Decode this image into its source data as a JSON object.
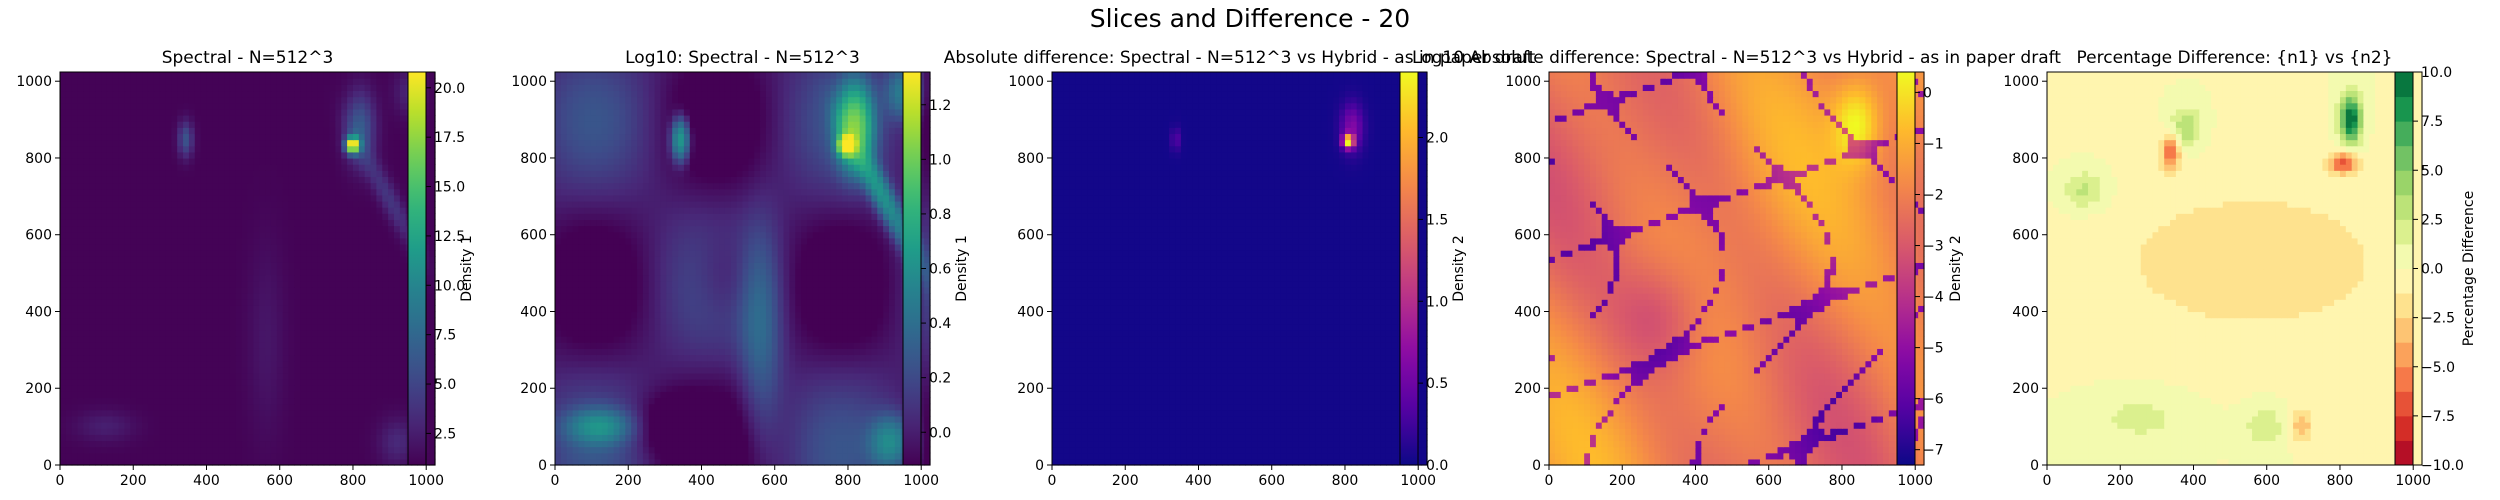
{
  "figure": {
    "title": "Slices and Difference - 20"
  },
  "chart_data": [
    {
      "type": "heatmap",
      "title": "Spectral - N=512^3",
      "xlabel": "",
      "ylabel": "",
      "xlim": [
        0,
        1024
      ],
      "ylim": [
        0,
        1024
      ],
      "x_ticks": [
        "0",
        "200",
        "400",
        "600",
        "800",
        "1000"
      ],
      "y_ticks": [
        "0",
        "200",
        "400",
        "600",
        "800",
        "1000"
      ],
      "colormap": "viridis",
      "colorbar": {
        "label": "Density 1",
        "range": [
          0.9,
          20.8
        ],
        "ticks": [
          "2.5",
          "5.0",
          "7.5",
          "10.0",
          "12.5",
          "15.0",
          "17.5",
          "20.0"
        ]
      },
      "field": "density_linear",
      "features": [
        {
          "x": 800,
          "y": 835,
          "value": 20.5,
          "note": "peak"
        },
        {
          "x": 340,
          "y": 850,
          "value": 6.5
        }
      ]
    },
    {
      "type": "heatmap",
      "title": "Log10: Spectral - N=512^3",
      "xlabel": "",
      "ylabel": "",
      "xlim": [
        0,
        1024
      ],
      "ylim": [
        0,
        1024
      ],
      "x_ticks": [
        "0",
        "200",
        "400",
        "600",
        "800",
        "1000"
      ],
      "y_ticks": [
        "0",
        "200",
        "400",
        "600",
        "800",
        "1000"
      ],
      "colormap": "viridis",
      "colorbar": {
        "label": "Density 1",
        "range": [
          -0.12,
          1.32
        ],
        "ticks": [
          "0.0",
          "0.2",
          "0.4",
          "0.6",
          "0.8",
          "1.0",
          "1.2"
        ]
      },
      "field": "density_log10",
      "features": [
        {
          "x": 800,
          "y": 835,
          "value": 1.31,
          "note": "peak"
        },
        {
          "x": 340,
          "y": 850,
          "value": 0.8
        }
      ]
    },
    {
      "type": "heatmap",
      "title": "Absolute difference: Spectral - N=512^3 vs Hybrid - as in paper draft",
      "xlabel": "",
      "ylabel": "",
      "xlim": [
        0,
        1024
      ],
      "ylim": [
        0,
        1024
      ],
      "x_ticks": [
        "0",
        "200",
        "400",
        "600",
        "800",
        "1000"
      ],
      "y_ticks": [
        "0",
        "200",
        "400",
        "600",
        "800",
        "1000"
      ],
      "colormap": "plasma",
      "colorbar": {
        "label": "Density 2",
        "range": [
          0,
          2.4
        ],
        "ticks": [
          "0.0",
          "0.5",
          "1.0",
          "1.5",
          "2.0"
        ]
      },
      "field": "abs_difference",
      "features": [
        {
          "x": 810,
          "y": 845,
          "value": 2.3,
          "note": "peak"
        }
      ]
    },
    {
      "type": "heatmap",
      "title": "Log10 Absolute difference: Spectral - N=512^3 vs Hybrid - as in paper draft",
      "xlabel": "",
      "ylabel": "",
      "xlim": [
        0,
        1024
      ],
      "ylim": [
        0,
        1024
      ],
      "x_ticks": [
        "0",
        "200",
        "400",
        "600",
        "800",
        "1000"
      ],
      "y_ticks": [
        "0",
        "200",
        "400",
        "600",
        "800",
        "1000"
      ],
      "colormap": "plasma",
      "colorbar": {
        "label": "Density 2",
        "range": [
          -7.3,
          0.4
        ],
        "ticks": [
          "−7",
          "−6",
          "−5",
          "−4",
          "−3",
          "−2",
          "−1",
          "0"
        ]
      },
      "field": "log_abs_difference",
      "features": [
        {
          "x": 830,
          "y": 900,
          "value": 0.2,
          "note": "maximum"
        },
        {
          "x": 250,
          "y": 380,
          "value": -5.0,
          "note": "zero-crossing curves"
        }
      ]
    },
    {
      "type": "heatmap",
      "title": "Percentage Difference: {n1} vs {n2}",
      "xlabel": "",
      "ylabel": "",
      "xlim": [
        0,
        1024
      ],
      "ylim": [
        0,
        1024
      ],
      "x_ticks": [
        "0",
        "200",
        "400",
        "600",
        "800",
        "1000"
      ],
      "y_ticks": [
        "0",
        "200",
        "400",
        "600",
        "800",
        "1000"
      ],
      "colormap": "RdYlGn",
      "colorbar": {
        "label": "Percentage Difference",
        "range": [
          -10,
          10
        ],
        "ticks": [
          "−10.0",
          "−7.5",
          "−5.0",
          "−2.5",
          "0.0",
          "2.5",
          "5.0",
          "7.5",
          "10.0"
        ]
      },
      "field": "percentage_difference",
      "features": [
        {
          "x": 830,
          "y": 910,
          "value": 10.0,
          "note": "max"
        },
        {
          "x": 820,
          "y": 790,
          "value": -6.5,
          "note": "min"
        },
        {
          "x": 340,
          "y": 820,
          "value": -5.0
        }
      ]
    }
  ]
}
